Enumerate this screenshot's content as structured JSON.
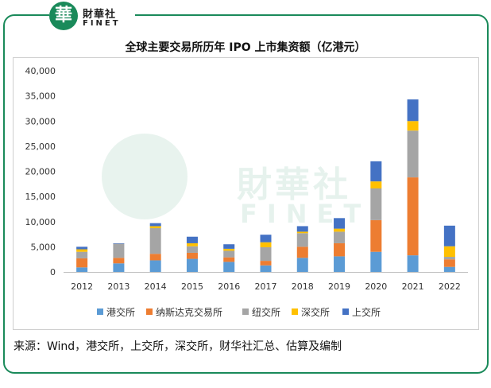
{
  "brand": {
    "logo_char": "華",
    "name_zh": "財華社",
    "name_en": "FINET"
  },
  "watermark": {
    "logo_char": "華",
    "name_zh": "財華社",
    "name_en": "FINET"
  },
  "colors": {
    "frame": "#1a8a5a",
    "series": [
      "#5b9bd5",
      "#ed7d31",
      "#a5a5a5",
      "#ffc000",
      "#4472c4"
    ]
  },
  "chart_data": {
    "type": "bar",
    "stacked": true,
    "title": "全球主要交易所历年 IPO 上市集资额（亿港元）",
    "categories": [
      "2012",
      "2013",
      "2014",
      "2015",
      "2016",
      "2017",
      "2018",
      "2019",
      "2020",
      "2021",
      "2022"
    ],
    "ylim": [
      0,
      40000
    ],
    "yticks": [
      "0",
      "5,000",
      "10,000",
      "15,000",
      "20,000",
      "25,000",
      "30,000",
      "35,000",
      "40,000"
    ],
    "grid": false,
    "legend_position": "bottom",
    "series": [
      {
        "name": "港交所",
        "color": "#5b9bd5",
        "values": [
          900,
          1700,
          2300,
          2600,
          2000,
          1300,
          2800,
          3100,
          4000,
          3300,
          1000
        ]
      },
      {
        "name": "纳斯达克交易所",
        "color": "#ed7d31",
        "values": [
          1800,
          1100,
          1300,
          1200,
          900,
          900,
          2200,
          2600,
          6300,
          15500,
          1500
        ]
      },
      {
        "name": "纽交所",
        "color": "#a5a5a5",
        "values": [
          1300,
          2800,
          5100,
          1300,
          1300,
          2700,
          2700,
          2300,
          6300,
          9300,
          500
        ]
      },
      {
        "name": "深交所",
        "color": "#ffc000",
        "values": [
          500,
          0,
          400,
          600,
          400,
          1000,
          300,
          600,
          1400,
          1900,
          2100
        ]
      },
      {
        "name": "上交所",
        "color": "#4472c4",
        "values": [
          500,
          100,
          600,
          1300,
          900,
          1500,
          1100,
          2100,
          4000,
          4300,
          4100
        ]
      }
    ]
  },
  "footer": {
    "source": "来源：Wind，港交所，上交所，深交所，财华社汇总、估算及编制"
  }
}
